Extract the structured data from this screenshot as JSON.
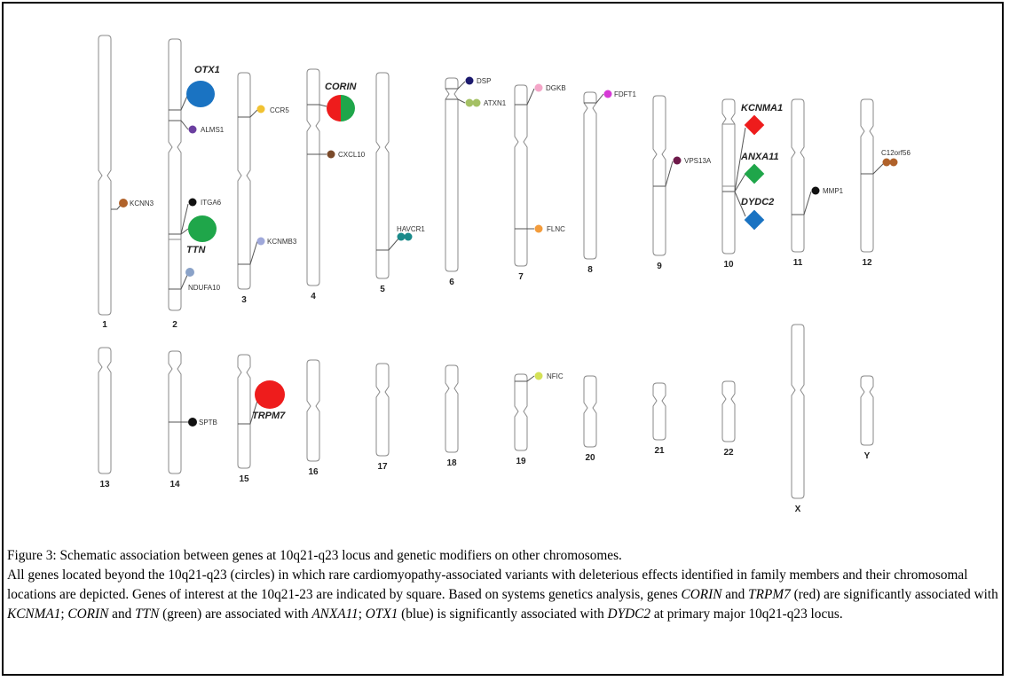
{
  "chromosomes_top": [
    "1",
    "2",
    "3",
    "4",
    "5",
    "6",
    "7",
    "8",
    "9",
    "10",
    "11",
    "12"
  ],
  "chromosomes_bottom": [
    "13",
    "14",
    "15",
    "16",
    "17",
    "18",
    "19",
    "20",
    "21",
    "22",
    "X",
    "Y"
  ],
  "genes": {
    "otx1": "OTX1",
    "alms1": "ALMS1",
    "itga6": "ITGA6",
    "ttn": "TTN",
    "ndufa10": "NDUFA10",
    "kcnn3": "KCNN3",
    "ccr5": "CCR5",
    "kcnmb3": "KCNMB3",
    "corin": "CORIN",
    "cxcl10": "CXCL10",
    "havcr1": "HAVCR1",
    "dsp": "DSP",
    "atxn1": "ATXN1",
    "dgkb": "DGKB",
    "flnc": "FLNC",
    "fdft1": "FDFT1",
    "vps13a": "VPS13A",
    "kcnma1": "KCNMA1",
    "anxa11": "ANXA11",
    "dydc2": "DYDC2",
    "mmp1": "MMP1",
    "c12orf56": "C12orf56",
    "sptb": "SPTB",
    "trpm7": "TRPM7",
    "nfic": "NFIC"
  },
  "colors": {
    "red": "#ee1c1c",
    "green": "#1fa64a",
    "blue": "#1a73c2",
    "brown": "#b0622a"
  },
  "caption": {
    "line1": "Figure 3: Schematic association between genes at 10q21-q23 locus and genetic modifiers on other chromosomes.",
    "p2_a": "All genes located beyond the 10q21-q23 (circles) in which rare cardiomyopathy-associated variants with deleterious effects identified in family members and their chromosomal locations are depicted. Genes of interest at the 10q21-23 are indicated by square. Based on systems genetics analysis, genes ",
    "p2_corin": "CORIN",
    "p2_b": " and ",
    "p2_trpm7": "TRPM7",
    "p2_c": " (red) are significantly associated with ",
    "p2_kcnma1": "KCNMA1",
    "p2_d": "; ",
    "p2_corin2": "CORIN",
    "p2_e": " and ",
    "p2_ttn": "TTN",
    "p2_f": " (green) are associated with ",
    "p2_anxa11": "ANXA11",
    "p2_g": "; ",
    "p2_otx1": "OTX1",
    "p2_h": " (blue) is significantly associated with ",
    "p2_dydc2": "DYDC2",
    "p2_i": " at primary major 10q21-q23 locus."
  }
}
